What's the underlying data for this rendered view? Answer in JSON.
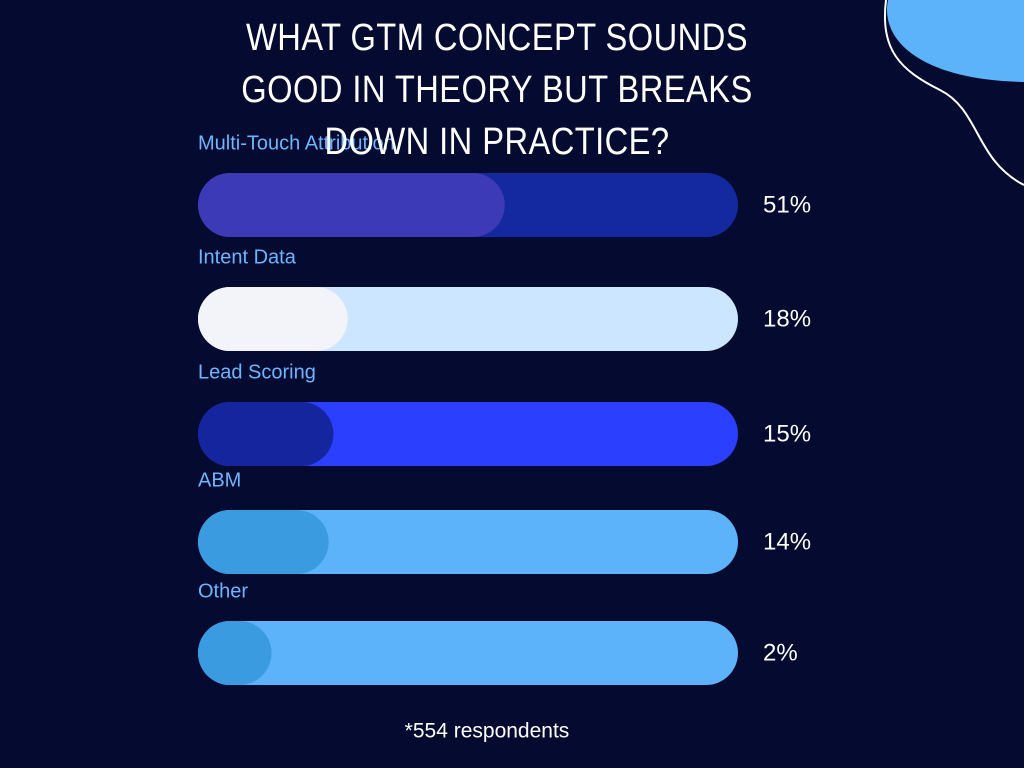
{
  "chart_data": {
    "type": "bar",
    "orientation": "horizontal",
    "title": "WHAT GTM CONCEPT SOUNDS GOOD IN THEORY BUT BREAKS DOWN IN PRACTICE?",
    "categories": [
      "Multi-Touch Attribution",
      "Intent Data",
      "Lead Scoring",
      "ABM",
      "Other"
    ],
    "values": [
      51,
      18,
      15,
      14,
      2
    ],
    "value_labels": [
      "51%",
      "18%",
      "15%",
      "14%",
      "2%"
    ],
    "colors": [
      "#3d3ab8",
      "#f2f4fa",
      "#14259e",
      "#3a9be0",
      "#3a9be0"
    ],
    "track_colors": [
      "#1428a0",
      "#cce6ff",
      "#2a3fff",
      "#5cb3fa",
      "#5cb3fa"
    ],
    "xlim": [
      0,
      100
    ],
    "footnote": "*554 respondents"
  }
}
